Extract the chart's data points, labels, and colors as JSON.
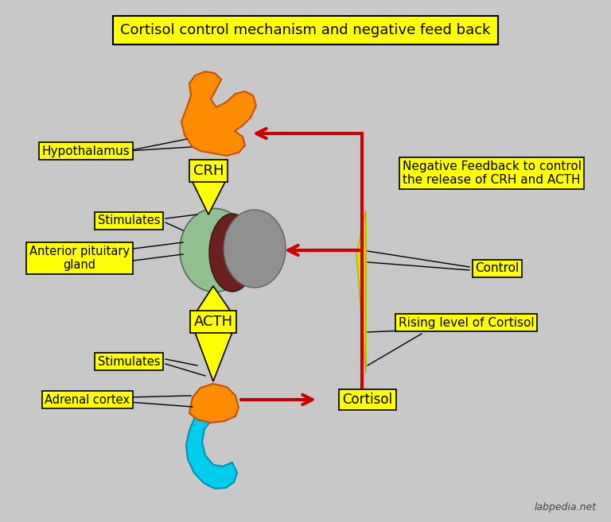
{
  "title": "Cortisol control mechanism and negative feed back",
  "bg_color": "#c8c8c8",
  "label_bg": "#ffff00",
  "label_edge": "#000000",
  "arrow_color": "#cc0000",
  "text_color": "#000000",
  "watermark": "labpedia.net",
  "labels": {
    "hypothalamus": "Hypothalamus",
    "crh": "CRH",
    "stimulates1": "Stimulates",
    "ant_pit": "Anterior pituitary\ngland",
    "acth": "ACTH",
    "stimulates2": "Stimulates",
    "adrenal": "Adrenal cortex",
    "cortisol": "Cortisol",
    "control": "Control",
    "rising": "Rising level of Cortisol",
    "neg_feedback": "Negative Feedback to control\nthe release of CRH and ACTH"
  },
  "colors": {
    "hypothalamus_body": "#ff8c00",
    "pituitary_green": "#90c090",
    "pituitary_dark": "#6b2020",
    "pituitary_gray": "#909090",
    "adrenal_orange": "#ff8c00",
    "adrenal_cyan": "#00ccee",
    "triangle_yellow": "#e0e000"
  }
}
